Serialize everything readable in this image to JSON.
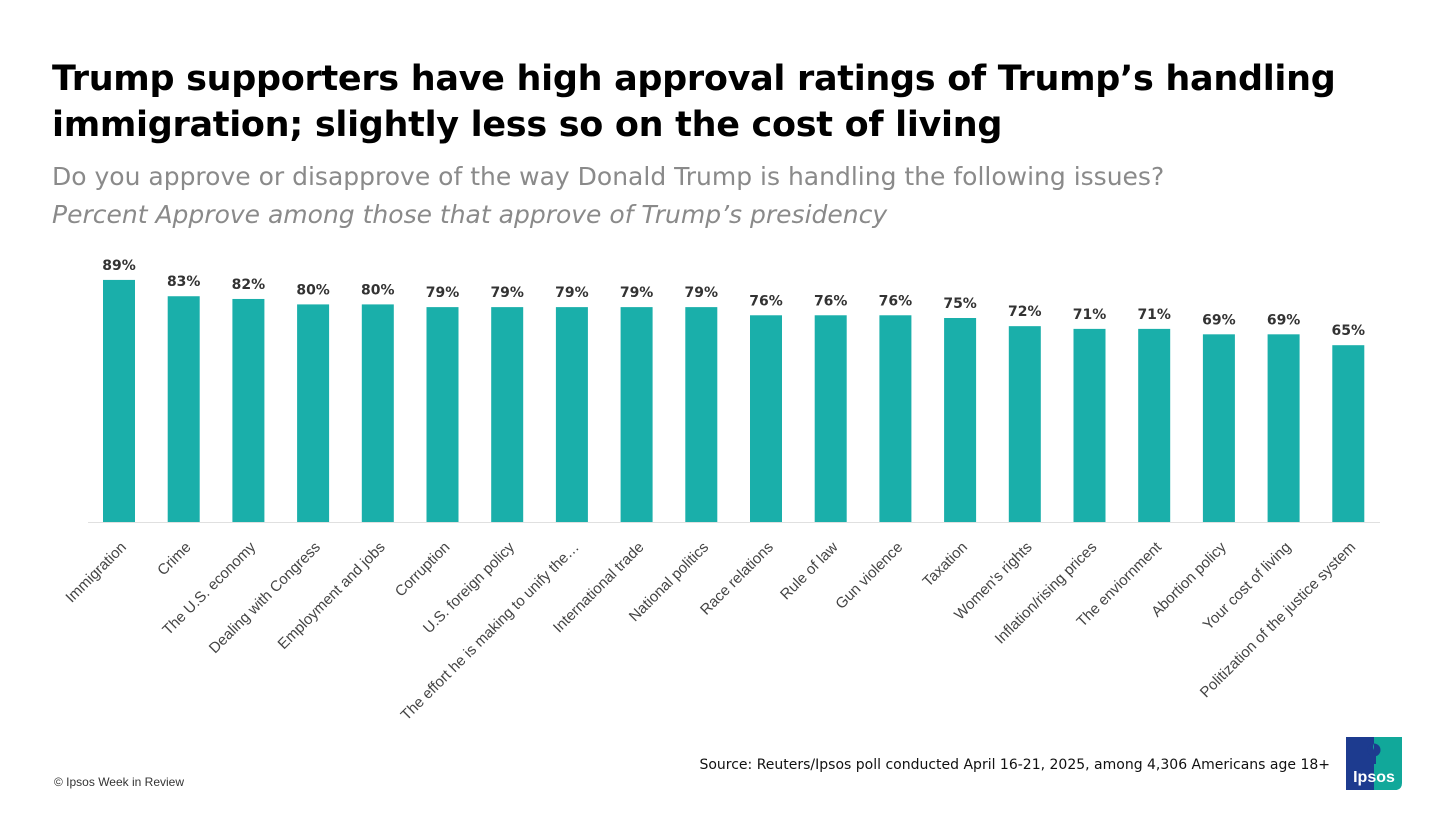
{
  "header": {
    "title": "Trump supporters have high approval ratings of Trump’s handling immigration; slightly less so on the cost of living",
    "subtitle": "Do you approve or disapprove of the way Donald Trump is handling the following issues?",
    "subtitle_italic": "Percent Approve among those that approve of Trump’s presidency"
  },
  "chart_data": {
    "type": "bar",
    "categories": [
      "Immigration",
      "Crime",
      "The U.S. economy",
      "Dealing with Congress",
      "Employment and jobs",
      "Corruption",
      "U.S. foreign policy",
      "The effort he is making to unify the…",
      "International trade",
      "National politics",
      "Race relations",
      "Rule of law",
      "Gun violence",
      "Taxation",
      "Women's rights",
      "Inflation/rising prices",
      "The enviornment",
      "Abortion policy",
      "Your cost of living",
      "Politization of the justice system"
    ],
    "values": [
      89,
      83,
      82,
      80,
      80,
      79,
      79,
      79,
      79,
      79,
      76,
      76,
      76,
      75,
      72,
      71,
      71,
      69,
      69,
      65
    ],
    "data_labels": [
      "89%",
      "83%",
      "82%",
      "80%",
      "80%",
      "79%",
      "79%",
      "79%",
      "79%",
      "79%",
      "76%",
      "76%",
      "76%",
      "75%",
      "72%",
      "71%",
      "71%",
      "69%",
      "69%",
      "65%"
    ],
    "ylim": [
      0,
      100
    ],
    "grid": false,
    "bar_color": "#1aafaa"
  },
  "footer": {
    "source": "Source: Reuters/Ipsos poll conducted April 16-21, 2025, among  4,306 Americans age 18+",
    "copyright": "© Ipsos Week in Review",
    "logo_text": "Ipsos"
  },
  "colors": {
    "logo_blue": "#1d3b8f",
    "logo_green": "#11a89a"
  }
}
